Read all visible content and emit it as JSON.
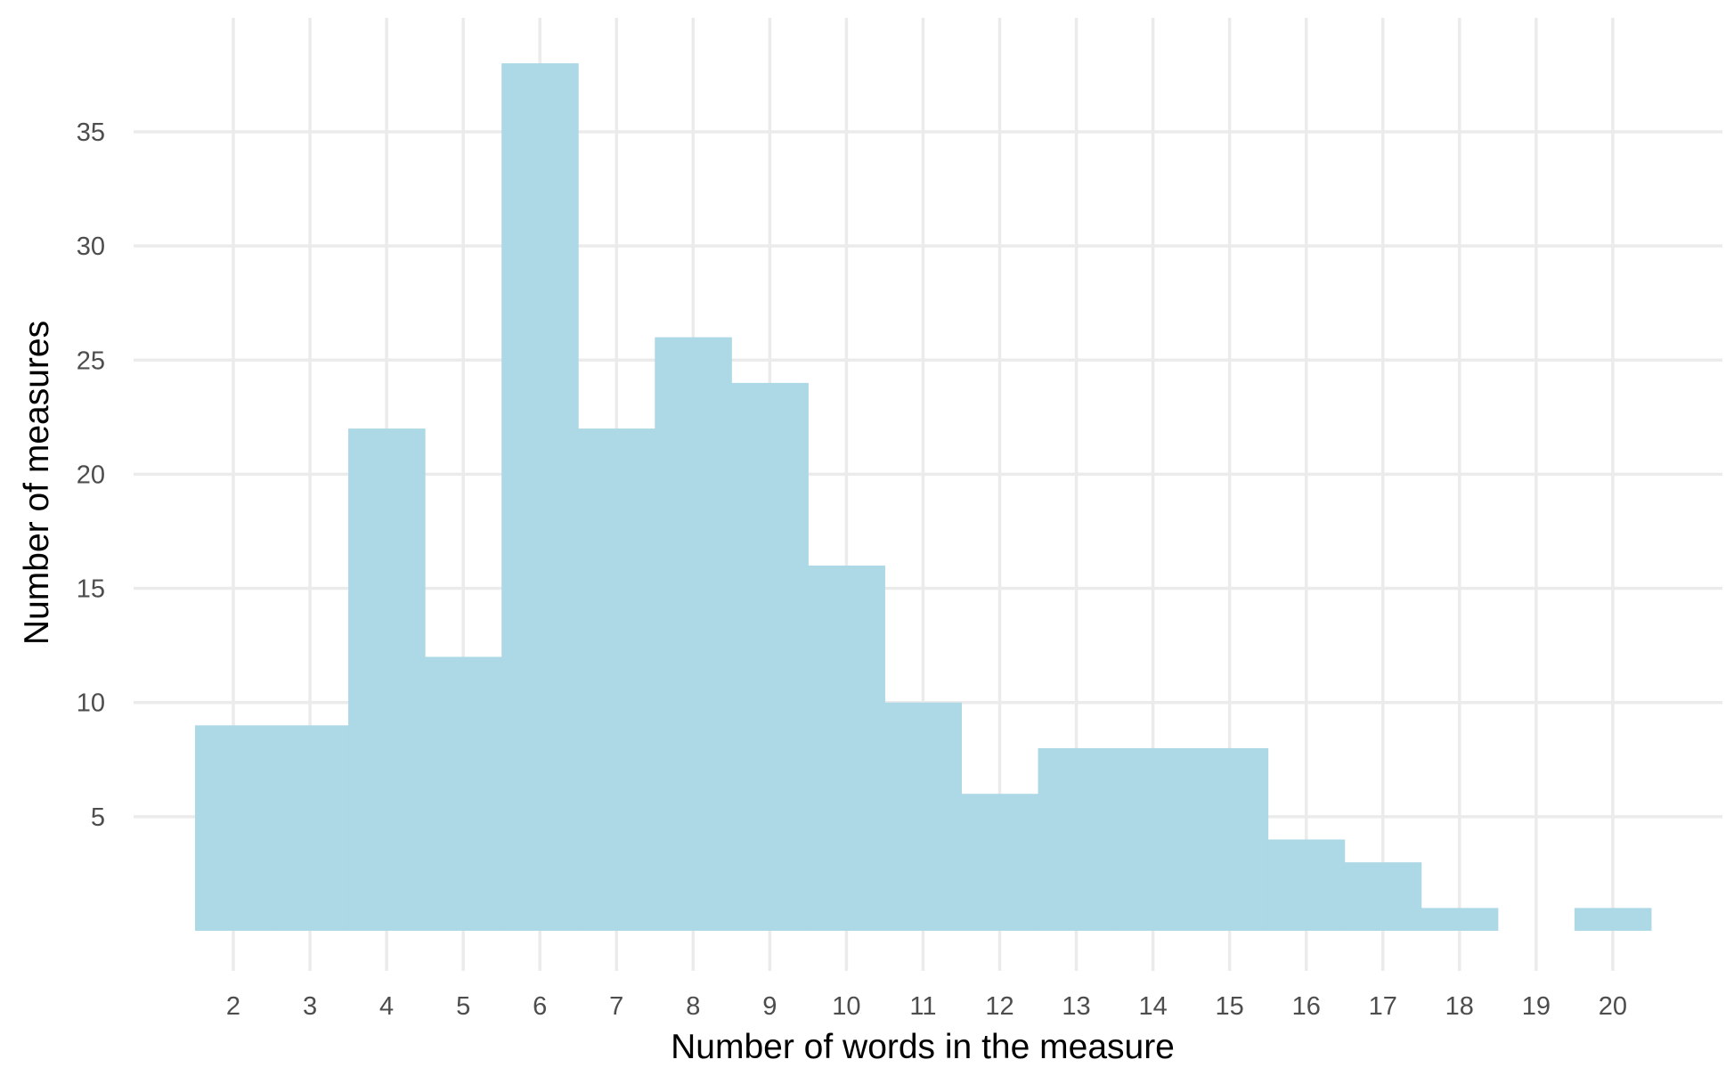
{
  "chart_data": {
    "type": "bar",
    "title": "",
    "xlabel": "Number of words in the measure",
    "ylabel": "Number of measures",
    "x": [
      2,
      3,
      4,
      5,
      6,
      7,
      8,
      9,
      10,
      11,
      12,
      13,
      14,
      15,
      16,
      17,
      18,
      19,
      20
    ],
    "values": [
      9,
      9,
      22,
      12,
      38,
      22,
      26,
      24,
      16,
      10,
      6,
      8,
      8,
      8,
      4,
      3,
      1,
      0,
      1
    ],
    "xlim": [
      1.0,
      21.0
    ],
    "ylim": [
      0,
      40
    ],
    "x_ticks": [
      "2",
      "3",
      "4",
      "5",
      "6",
      "7",
      "8",
      "9",
      "10",
      "11",
      "12",
      "13",
      "14",
      "15",
      "16",
      "17",
      "18",
      "19",
      "20"
    ],
    "y_ticks": [
      "5",
      "10",
      "15",
      "20",
      "25",
      "30",
      "35"
    ],
    "grid": true,
    "bar_color": "#add8e6",
    "grid_color": "#ebebeb"
  }
}
